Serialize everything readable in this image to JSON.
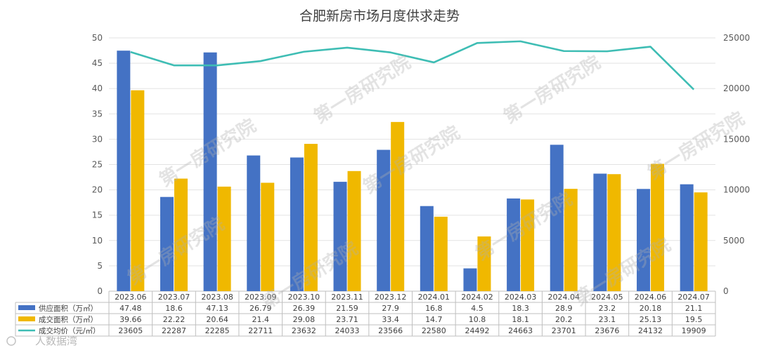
{
  "chart_data": {
    "type": "bar",
    "title": "合肥新房市场月度供求走势",
    "categories": [
      "2023.06",
      "2023.07",
      "2023.08",
      "2023.09",
      "2023.10",
      "2023.11",
      "2023.12",
      "2024.01",
      "2024.02",
      "2024.03",
      "2024.04",
      "2024.05",
      "2024.06",
      "2024.07"
    ],
    "series": [
      {
        "name": "供应面积（万㎡）",
        "kind": "bar",
        "axis": "left",
        "color": "#4472C4",
        "values": [
          47.48,
          18.6,
          47.13,
          26.79,
          26.39,
          21.59,
          27.9,
          16.8,
          4.5,
          18.3,
          28.9,
          23.2,
          20.18,
          21.1
        ]
      },
      {
        "name": "成交面积（万㎡）",
        "kind": "bar",
        "axis": "left",
        "color": "#F0B800",
        "values": [
          39.66,
          22.22,
          20.64,
          21.4,
          29.08,
          23.71,
          33.4,
          14.7,
          10.8,
          18.1,
          20.2,
          23.1,
          25.13,
          19.5
        ]
      },
      {
        "name": "成交均价（元/㎡）",
        "kind": "line",
        "axis": "right",
        "color": "#3EBDB4",
        "values": [
          23605,
          22287,
          22285,
          22711,
          23632,
          24033,
          23566,
          22580,
          24492,
          24663,
          23701,
          23676,
          24132,
          19909
        ]
      }
    ],
    "left_axis": {
      "min": 0,
      "max": 50,
      "step": 5,
      "ticks": [
        "0",
        "5",
        "10",
        "15",
        "20",
        "25",
        "30",
        "35",
        "40",
        "45",
        "50"
      ]
    },
    "right_axis": {
      "min": 0,
      "max": 25000,
      "step": 5000,
      "ticks": [
        "0",
        "5000",
        "10000",
        "15000",
        "20000",
        "25000"
      ]
    },
    "grid": true,
    "legend": "data-table",
    "table": {
      "rows": [
        [
          "47.48",
          "18.6",
          "47.13",
          "26.79",
          "26.39",
          "21.59",
          "27.9",
          "16.8",
          "4.5",
          "18.3",
          "28.9",
          "23.2",
          "20.18",
          "21.1"
        ],
        [
          "39.66",
          "22.22",
          "20.64",
          "21.4",
          "29.08",
          "23.71",
          "33.4",
          "14.7",
          "10.8",
          "18.1",
          "20.2",
          "23.1",
          "25.13",
          "19.5"
        ],
        [
          "23605",
          "22287",
          "22285",
          "22711",
          "23632",
          "24033",
          "23566",
          "22580",
          "24492",
          "24663",
          "23701",
          "23676",
          "24132",
          "19909"
        ]
      ]
    }
  },
  "watermark": "第一房研究院",
  "brand": "人数据湾"
}
